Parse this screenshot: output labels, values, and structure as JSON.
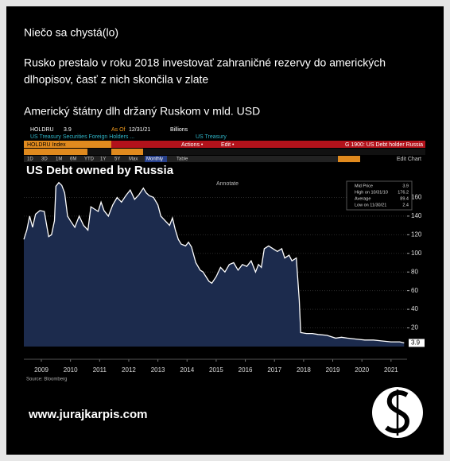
{
  "post": {
    "heading": "Niečo sa chystá(lo)",
    "text_line1": "Rusko prestalo v roku 2018 investovať zahraničné rezervy do amerických",
    "text_line2": "dlhopisov, časť z nich skončila v zlate",
    "caption": "Americký štátny dlh držaný Ruskom v mld. USD"
  },
  "terminal": {
    "ticker": "HOLDRU",
    "last": "3.9",
    "as_of": "As Of",
    "date": "12/31/21",
    "units": "Billions",
    "desc": "US Treasury Securities Foreign Holders ...",
    "source_name": "US Treasury",
    "index": "HOLDRU Index",
    "actions": "Actions •",
    "edit": "Edit •",
    "page": "G 1900: US Debt holder Russia",
    "ranges": [
      "1D",
      "3D",
      "1M",
      "6M",
      "YTD",
      "1Y",
      "5Y",
      "Max"
    ],
    "freq": "Monthly",
    "table": "Table",
    "edit_chart": "Edit Chart",
    "annotate": "Annotate"
  },
  "chart_data": {
    "type": "area",
    "title": "US Debt owned by Russia",
    "color": "#1c2b4d",
    "line_color": "#ffffff",
    "x": [
      2008.9,
      2009.0,
      2009.1,
      2009.2,
      2009.3,
      2009.45,
      2009.6,
      2009.75,
      2009.85,
      2009.95,
      2010.0,
      2010.1,
      2010.2,
      2010.3,
      2010.4,
      2010.5,
      2010.65,
      2010.8,
      2010.95,
      2011.1,
      2011.2,
      2011.3,
      2011.45,
      2011.55,
      2011.65,
      2011.8,
      2011.95,
      2012.1,
      2012.25,
      2012.4,
      2012.55,
      2012.7,
      2012.85,
      2013.0,
      2013.1,
      2013.2,
      2013.35,
      2013.5,
      2013.6,
      2013.75,
      2013.9,
      2014.0,
      2014.1,
      2014.2,
      2014.3,
      2014.45,
      2014.55,
      2014.65,
      2014.8,
      2014.95,
      2015.05,
      2015.15,
      2015.25,
      2015.35,
      2015.5,
      2015.65,
      2015.8,
      2015.95,
      2016.1,
      2016.25,
      2016.4,
      2016.55,
      2016.7,
      2016.85,
      2016.95,
      2017.05,
      2017.15,
      2017.3,
      2017.45,
      2017.6,
      2017.75,
      2017.85,
      2018.0,
      2018.1,
      2018.25,
      2018.35,
      2018.4,
      2018.6,
      2018.8,
      2019.0,
      2019.3,
      2019.6,
      2019.8,
      2020.0,
      2020.3,
      2020.6,
      2020.9,
      2021.2,
      2021.5,
      2021.8,
      2021.95
    ],
    "values": [
      115,
      125,
      140,
      128,
      142,
      146,
      145,
      118,
      120,
      135,
      172,
      176,
      173,
      165,
      140,
      135,
      128,
      140,
      130,
      125,
      150,
      148,
      145,
      155,
      146,
      140,
      152,
      160,
      155,
      162,
      168,
      158,
      163,
      170,
      165,
      162,
      160,
      152,
      140,
      135,
      130,
      138,
      125,
      115,
      110,
      108,
      112,
      107,
      90,
      82,
      80,
      75,
      70,
      68,
      75,
      85,
      80,
      88,
      90,
      82,
      88,
      86,
      92,
      80,
      88,
      85,
      105,
      108,
      105,
      102,
      105,
      95,
      98,
      92,
      95,
      50,
      15,
      14,
      14,
      13,
      12,
      9,
      10,
      9,
      8,
      7,
      7,
      6,
      5,
      5,
      3.9
    ],
    "xlim": [
      2008.9,
      2022.05
    ],
    "ylim": [
      0,
      180
    ],
    "yticks": [
      20,
      40,
      60,
      80,
      100,
      120,
      140,
      160
    ],
    "xticks": [
      {
        "value": 2009.5,
        "label": "2009"
      },
      {
        "value": 2010.5,
        "label": "2010"
      },
      {
        "value": 2011.5,
        "label": "2011"
      },
      {
        "value": 2012.5,
        "label": "2012"
      },
      {
        "value": 2013.5,
        "label": "2013"
      },
      {
        "value": 2014.5,
        "label": "2014"
      },
      {
        "value": 2015.5,
        "label": "2015"
      },
      {
        "value": 2016.5,
        "label": "2016"
      },
      {
        "value": 2017.5,
        "label": "2017"
      },
      {
        "value": 2018.5,
        "label": "2018"
      },
      {
        "value": 2019.5,
        "label": "2019"
      },
      {
        "value": 2020.5,
        "label": "2020"
      },
      {
        "value": 2021.5,
        "label": "2021"
      }
    ],
    "grid": true,
    "stats": [
      {
        "label": "Mid Price",
        "value": 3.9
      },
      {
        "label": "High on 10/31/10",
        "value": 176.2
      },
      {
        "label": "Average",
        "value": 89.4
      },
      {
        "label": "Low on 11/30/21",
        "value": 2.4
      }
    ],
    "source": "Source: Bloomberg"
  },
  "footer": {
    "url": "www.jurajkarpis.com"
  }
}
